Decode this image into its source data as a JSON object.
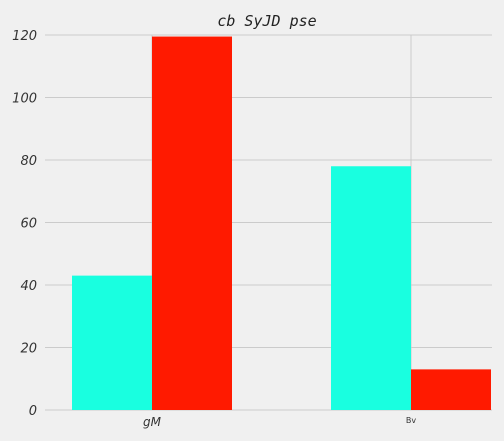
{
  "chart_data": {
    "type": "bar",
    "title": "cb SyJD   pse",
    "xlabel": "",
    "ylabel": "",
    "categories": [
      "gM",
      "Bv"
    ],
    "ylim": [
      0,
      120
    ],
    "yticks": [
      0,
      20,
      40,
      60,
      80,
      100,
      120
    ],
    "grid": true,
    "series": [
      {
        "values": [
          43,
          78
        ],
        "color": "#19ffe0"
      },
      {
        "values": [
          119.5,
          13
        ],
        "color": "#ff1a00"
      }
    ]
  }
}
